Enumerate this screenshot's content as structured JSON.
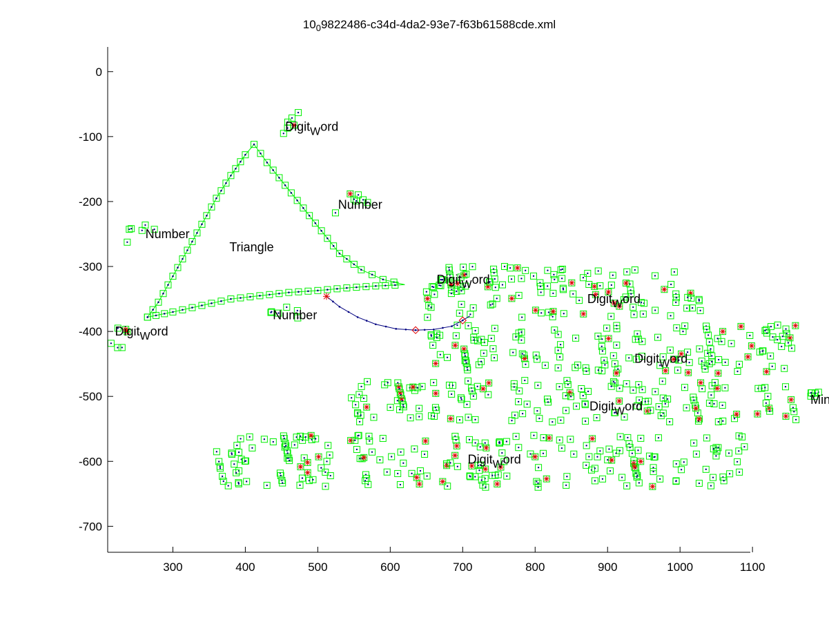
{
  "chart_data": {
    "type": "scatter",
    "title_main": "10",
    "title_sub": "0",
    "title_rest": "9822486-c34d-4da2-93e7-f63b61588cde.xml",
    "xlim": [
      210,
      1097
    ],
    "ylim": [
      -740,
      38
    ],
    "xticks": [
      300,
      400,
      500,
      600,
      700,
      800,
      900,
      1000,
      1100
    ],
    "yticks": [
      0,
      -100,
      -200,
      -300,
      -400,
      -500,
      -600,
      -700
    ],
    "grid": false,
    "legend": "none",
    "colors": {
      "box": "#00ee00",
      "star": "#e00000",
      "stroke": "#000080",
      "axis": "#000000"
    },
    "annotations": [
      {
        "x": 455,
        "y": -85,
        "main": "Digit",
        "sub": "W",
        "rest": "ord"
      },
      {
        "x": 262,
        "y": -250,
        "main": "Number",
        "sub": "",
        "rest": ""
      },
      {
        "x": 528,
        "y": -205,
        "main": "Number",
        "sub": "",
        "rest": ""
      },
      {
        "x": 378,
        "y": -270,
        "main": "Triangle",
        "sub": "",
        "rest": ""
      },
      {
        "x": 664,
        "y": -320,
        "main": "Digit",
        "sub": "W",
        "rest": "ord"
      },
      {
        "x": 872,
        "y": -350,
        "main": "Digit",
        "sub": "W",
        "rest": "ord"
      },
      {
        "x": 438,
        "y": -375,
        "main": "Number",
        "sub": "",
        "rest": ""
      },
      {
        "x": 220,
        "y": -400,
        "main": "Digit",
        "sub": "W",
        "rest": "ord"
      },
      {
        "x": 937,
        "y": -442,
        "main": "Digit",
        "sub": "W",
        "rest": "ord"
      },
      {
        "x": 1180,
        "y": -505,
        "main": "Minus",
        "sub": "",
        "rest": ""
      },
      {
        "x": 875,
        "y": -515,
        "main": "Digit",
        "sub": "W",
        "rest": "ord"
      },
      {
        "x": 707,
        "y": -597,
        "main": "Digit",
        "sub": "W",
        "rest": "ord"
      }
    ],
    "strokes": [
      {
        "name": "triangle-left-edge",
        "points": [
          [
            265,
            -378
          ],
          [
            280,
            -355
          ],
          [
            300,
            -315
          ],
          [
            320,
            -275
          ],
          [
            340,
            -235
          ],
          [
            360,
            -195
          ],
          [
            380,
            -160
          ],
          [
            400,
            -128
          ],
          [
            412,
            -112
          ]
        ]
      },
      {
        "name": "triangle-right-edge",
        "points": [
          [
            412,
            -112
          ],
          [
            430,
            -140
          ],
          [
            455,
            -175
          ],
          [
            480,
            -210
          ],
          [
            505,
            -245
          ],
          [
            530,
            -280
          ],
          [
            560,
            -305
          ],
          [
            590,
            -320
          ],
          [
            620,
            -328
          ]
        ]
      },
      {
        "name": "triangle-bottom-edge",
        "points": [
          [
            265,
            -378
          ],
          [
            300,
            -370
          ],
          [
            340,
            -360
          ],
          [
            380,
            -350
          ],
          [
            420,
            -345
          ],
          [
            460,
            -340
          ],
          [
            500,
            -337
          ],
          [
            540,
            -333
          ],
          [
            580,
            -330
          ],
          [
            620,
            -328
          ]
        ]
      },
      {
        "name": "curve-stroke",
        "points": [
          [
            512,
            -346
          ],
          [
            530,
            -362
          ],
          [
            555,
            -378
          ],
          [
            580,
            -389
          ],
          [
            608,
            -396
          ],
          [
            635,
            -398
          ],
          [
            660,
            -397
          ],
          [
            685,
            -392
          ],
          [
            700,
            -383
          ],
          [
            710,
            -376
          ]
        ]
      }
    ],
    "regions": [
      {
        "name": "digitword-top",
        "x": [
          450,
          485
        ],
        "y": [
          -60,
          -100
        ]
      },
      {
        "name": "number-left",
        "x": [
          235,
          275
        ],
        "y": [
          -225,
          -265
        ]
      },
      {
        "name": "number-mid",
        "x": [
          520,
          575
        ],
        "y": [
          -185,
          -220
        ]
      },
      {
        "name": "digitword-mid",
        "x": [
          645,
          700
        ],
        "y": [
          -305,
          -340
        ]
      },
      {
        "name": "number-low",
        "x": [
          435,
          485
        ],
        "y": [
          -360,
          -390
        ]
      },
      {
        "name": "digitword-left",
        "x": [
          210,
          240
        ],
        "y": [
          -390,
          -430
        ]
      },
      {
        "name": "text-line-1",
        "x": [
          650,
          1030
        ],
        "y": [
          -300,
          -380
        ]
      },
      {
        "name": "text-line-2",
        "x": [
          655,
          1160
        ],
        "y": [
          -390,
          -465
        ]
      },
      {
        "name": "text-line-3",
        "x": [
          545,
          1165
        ],
        "y": [
          -475,
          -540
        ]
      },
      {
        "name": "text-line-4",
        "x": [
          360,
          1090
        ],
        "y": [
          -560,
          -640
        ]
      },
      {
        "name": "minus-stroke",
        "x": [
          1175,
          1195
        ],
        "y": [
          -492,
          -500
        ]
      }
    ]
  }
}
